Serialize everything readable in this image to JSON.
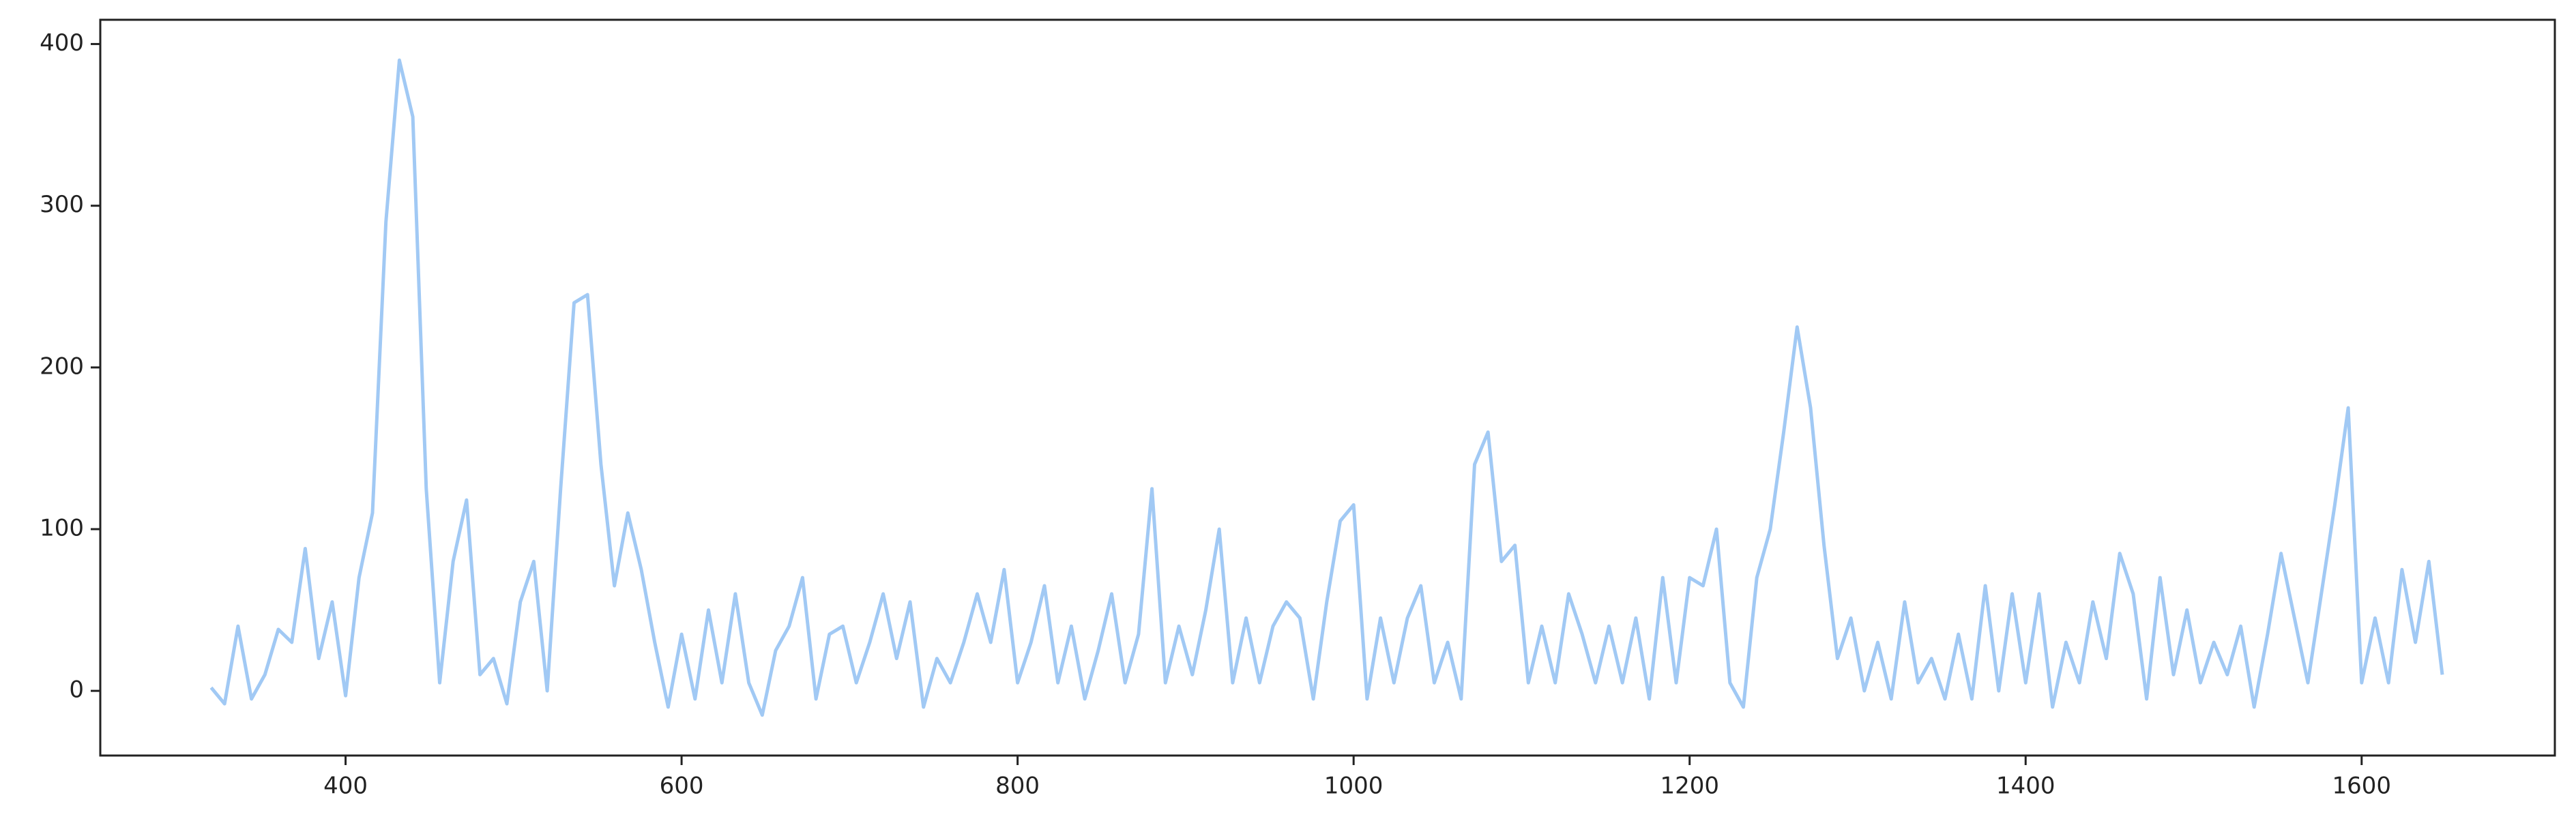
{
  "chart_data": {
    "type": "line",
    "x": [
      320,
      328,
      336,
      344,
      352,
      360,
      368,
      376,
      384,
      392,
      400,
      408,
      416,
      424,
      432,
      440,
      448,
      456,
      464,
      472,
      480,
      488,
      496,
      504,
      512,
      520,
      528,
      536,
      544,
      552,
      560,
      568,
      576,
      584,
      592,
      600,
      608,
      616,
      624,
      632,
      640,
      648,
      656,
      664,
      672,
      680,
      688,
      696,
      704,
      712,
      720,
      728,
      736,
      744,
      752,
      760,
      768,
      776,
      784,
      792,
      800,
      808,
      816,
      824,
      832,
      840,
      848,
      856,
      864,
      872,
      880,
      888,
      896,
      904,
      912,
      920,
      928,
      936,
      944,
      952,
      960,
      968,
      976,
      984,
      992,
      1000,
      1008,
      1016,
      1024,
      1032,
      1040,
      1048,
      1056,
      1064,
      1072,
      1080,
      1088,
      1096,
      1104,
      1112,
      1120,
      1128,
      1136,
      1144,
      1152,
      1160,
      1168,
      1176,
      1184,
      1192,
      1200,
      1208,
      1216,
      1224,
      1232,
      1240,
      1248,
      1256,
      1264,
      1272,
      1280,
      1288,
      1296,
      1304,
      1312,
      1320,
      1328,
      1336,
      1344,
      1352,
      1360,
      1368,
      1376,
      1384,
      1392,
      1400,
      1408,
      1416,
      1424,
      1432,
      1440,
      1448,
      1456,
      1464,
      1472,
      1480,
      1488,
      1496,
      1504,
      1512,
      1520,
      1528,
      1536,
      1544,
      1552,
      1560,
      1568,
      1576,
      1584,
      1592,
      1600,
      1608,
      1616,
      1624,
      1632,
      1640,
      1648
    ],
    "series": [
      {
        "color": "#a1c9f4",
        "values": [
          2,
          -8,
          40,
          -5,
          10,
          38,
          30,
          88,
          20,
          55,
          -3,
          70,
          110,
          290,
          390,
          355,
          125,
          5,
          80,
          118,
          10,
          20,
          -8,
          55,
          80,
          0,
          125,
          240,
          245,
          140,
          65,
          110,
          75,
          30,
          -10,
          35,
          -5,
          50,
          5,
          60,
          5,
          -15,
          25,
          40,
          70,
          -5,
          35,
          40,
          5,
          30,
          60,
          20,
          55,
          -10,
          20,
          5,
          30,
          60,
          30,
          75,
          5,
          30,
          65,
          5,
          40,
          -5,
          25,
          60,
          5,
          35,
          125,
          5,
          40,
          10,
          50,
          100,
          5,
          45,
          5,
          40,
          55,
          45,
          -5,
          55,
          105,
          115,
          -5,
          45,
          5,
          45,
          65,
          5,
          30,
          -5,
          140,
          160,
          80,
          90,
          5,
          40,
          5,
          60,
          35,
          5,
          40,
          5,
          45,
          -5,
          70,
          5,
          70,
          65,
          100,
          5,
          -10,
          70,
          100,
          160,
          225,
          175,
          90,
          20,
          45,
          0,
          30,
          -5,
          55,
          5,
          20,
          -5,
          35,
          -5,
          65,
          0,
          60,
          5,
          60,
          -10,
          30,
          5,
          55,
          20,
          85,
          60,
          -5,
          70,
          10,
          50,
          5,
          30,
          10,
          40,
          -10,
          35,
          85,
          45,
          5,
          60,
          115,
          175,
          5,
          45,
          5,
          75,
          30,
          80,
          10
        ]
      }
    ],
    "xlim": [
      254,
      1715
    ],
    "ylim": [
      -40,
      415
    ],
    "xticks": [
      400,
      600,
      800,
      1000,
      1200,
      1400,
      1600
    ],
    "yticks": [
      0,
      100,
      200,
      300,
      400
    ]
  }
}
